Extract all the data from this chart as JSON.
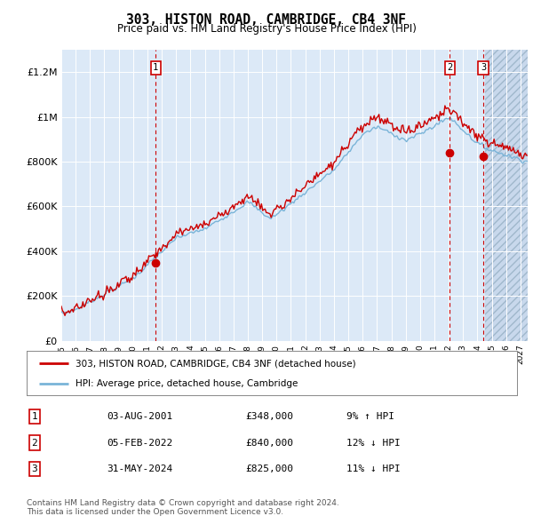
{
  "title": "303, HISTON ROAD, CAMBRIDGE, CB4 3NF",
  "subtitle": "Price paid vs. HM Land Registry's House Price Index (HPI)",
  "background_color": "#dce9f7",
  "hatch_bg_color": "#c8d8ec",
  "line_color_hpi": "#7ab4d8",
  "line_color_price": "#cc0000",
  "marker_dot_color": "#cc0000",
  "ylim": [
    0,
    1300000
  ],
  "yticks": [
    0,
    200000,
    400000,
    600000,
    800000,
    1000000,
    1200000
  ],
  "ytick_labels": [
    "£0",
    "£200K",
    "£400K",
    "£600K",
    "£800K",
    "£1M",
    "£1.2M"
  ],
  "xtick_years": [
    1995,
    1996,
    1997,
    1998,
    1999,
    2000,
    2001,
    2002,
    2003,
    2004,
    2005,
    2006,
    2007,
    2008,
    2009,
    2010,
    2011,
    2012,
    2013,
    2014,
    2015,
    2016,
    2017,
    2018,
    2019,
    2020,
    2021,
    2022,
    2023,
    2024,
    2025,
    2026,
    2027
  ],
  "xlim": [
    1995,
    2027.5
  ],
  "marker1_x": 2001.58,
  "marker1_y": 348000,
  "marker1_label": "1",
  "marker1_date": "03-AUG-2001",
  "marker1_price": "£348,000",
  "marker1_pct": "9% ↑ HPI",
  "marker2_x": 2022.08,
  "marker2_y": 840000,
  "marker2_label": "2",
  "marker2_date": "05-FEB-2022",
  "marker2_price": "£840,000",
  "marker2_pct": "12% ↓ HPI",
  "marker3_x": 2024.41,
  "marker3_y": 825000,
  "marker3_label": "3",
  "marker3_date": "31-MAY-2024",
  "marker3_price": "£825,000",
  "marker3_pct": "11% ↓ HPI",
  "legend_line1": "303, HISTON ROAD, CAMBRIDGE, CB4 3NF (detached house)",
  "legend_line2": "HPI: Average price, detached house, Cambridge",
  "footnote": "Contains HM Land Registry data © Crown copyright and database right 2024.\nThis data is licensed under the Open Government Licence v3.0.",
  "future_start": 2024.5
}
